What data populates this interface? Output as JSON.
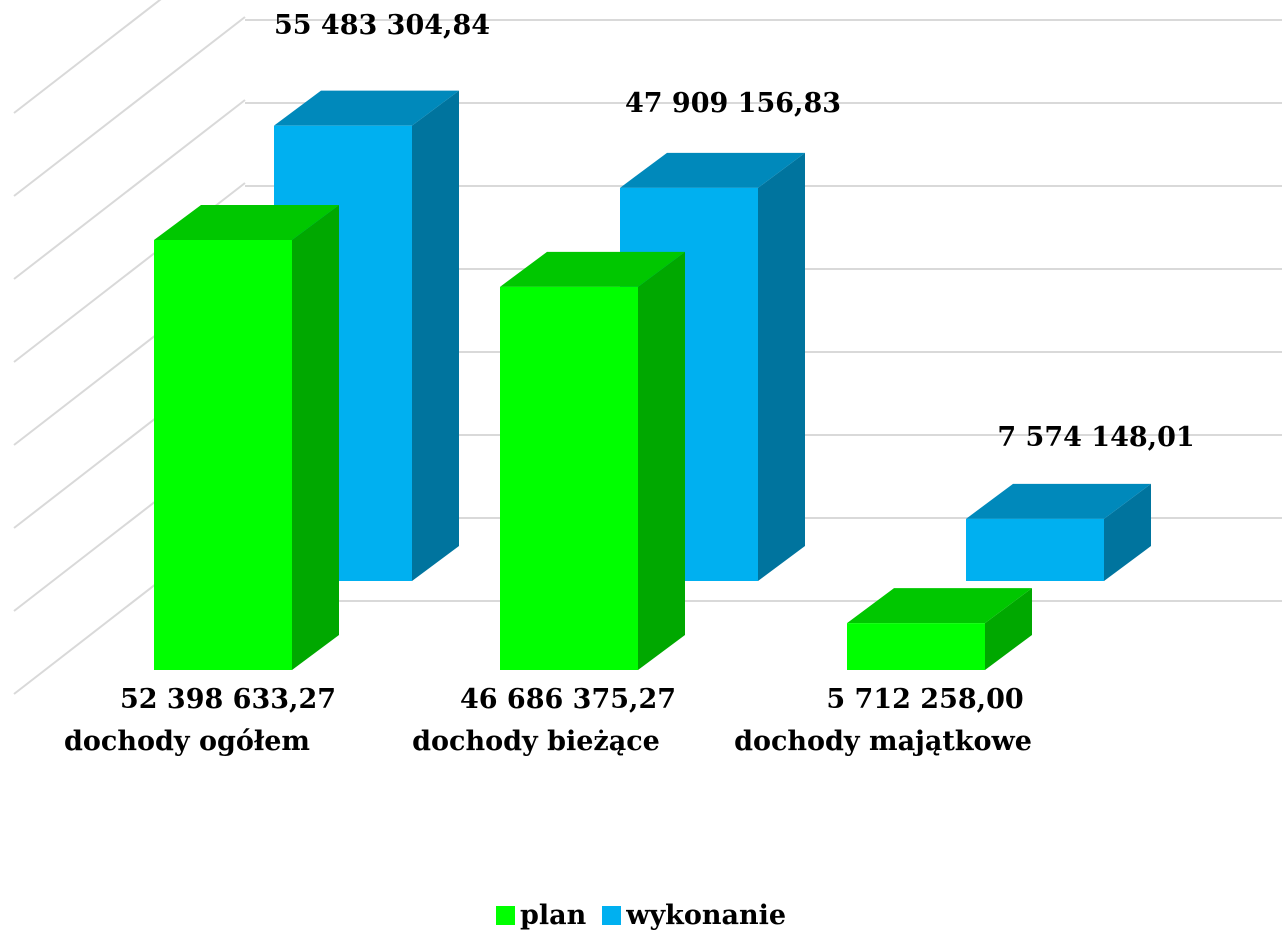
{
  "chart_data": {
    "type": "bar",
    "three_d": true,
    "categories": [
      "dochody ogółem",
      "dochody bieżące",
      "dochody majątkowe"
    ],
    "series": [
      {
        "name": "plan",
        "color": "#00ff00",
        "values": [
          52398633.27,
          46686375.27,
          5712258.0
        ],
        "labels": [
          "52 398 633,27",
          "46 686 375,27",
          "5 712 258,00"
        ]
      },
      {
        "name": "wykonanie",
        "color": "#00b0f0",
        "values": [
          55483304.84,
          47909156.83,
          7574148.01
        ],
        "labels": [
          "55 483 304,84",
          "47 909 156,83",
          "7 574 148,01"
        ]
      }
    ],
    "ylim": [
      0,
      60000000
    ],
    "grid": true,
    "legend_position": "bottom"
  }
}
